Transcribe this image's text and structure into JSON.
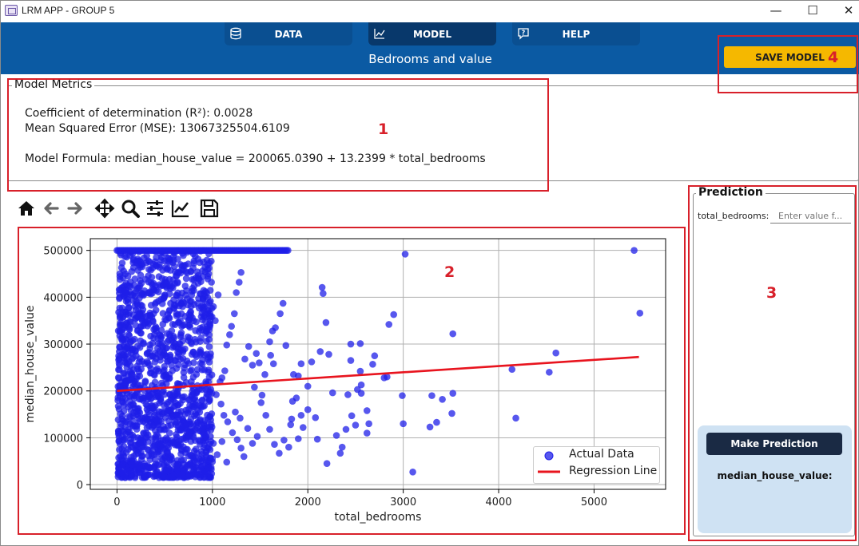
{
  "window": {
    "title": "LRM APP - GROUP 5",
    "minimize_glyph": "—",
    "maximize_glyph": "☐",
    "close_glyph": "✕"
  },
  "header": {
    "tabs": [
      {
        "label": "DATA",
        "icon": "database-icon",
        "active": false
      },
      {
        "label": "MODEL",
        "icon": "chart-icon",
        "active": true
      },
      {
        "label": "HELP",
        "icon": "help-bubble-icon",
        "active": false
      }
    ],
    "subtitle": "Bedrooms and value",
    "save_label": "SAVE MODEL"
  },
  "annotations": {
    "labels": [
      "1",
      "2",
      "3",
      "4"
    ],
    "color": "#d8202a"
  },
  "metrics": {
    "legend": "Model Metrics",
    "r2": "Coefficient of determination (R²): 0.0028",
    "mse": "Mean Squared Error (MSE): 13067325504.6109",
    "formula": "Model Formula: median_house_value = 200065.0390 + 13.2399 * total_bedrooms"
  },
  "toolbar": {
    "icons": [
      "home-icon",
      "back-arrow-icon",
      "forward-arrow-icon",
      "pan-icon",
      "zoom-icon",
      "configure-subplots-icon",
      "edit-axis-icon",
      "save-figure-icon"
    ]
  },
  "prediction": {
    "legend": "Prediction",
    "field_label": "total_bedrooms:",
    "field_placeholder": "Enter value f...",
    "button_label": "Make Prediction",
    "result_label": "median_house_value:"
  },
  "colors": {
    "header_blue": "#0b5aa3",
    "active_tab": "#08386b",
    "save_button": "#f5b800",
    "scatter": "#1f1fe8",
    "regression": "#e8141e",
    "card": "#cfe2f3"
  },
  "chart_data": {
    "type": "scatter",
    "xlabel": "total_bedrooms",
    "ylabel": "median_house_value",
    "xlim": [
      -280,
      5750
    ],
    "ylim": [
      -10000,
      525000
    ],
    "x_ticks": [
      0,
      1000,
      2000,
      3000,
      4000,
      5000
    ],
    "y_ticks": [
      0,
      100000,
      200000,
      300000,
      400000,
      500000
    ],
    "grid": true,
    "legend_position": "bottom-right",
    "series": [
      {
        "name": "Actual Data",
        "kind": "scatter",
        "points": [
          [
            5420,
            500001
          ],
          [
            3020,
            492000
          ],
          [
            5480,
            366000
          ],
          [
            4600,
            281000
          ],
          [
            4140,
            246000
          ],
          [
            4530,
            240000
          ],
          [
            4180,
            142000
          ],
          [
            3520,
            322000
          ],
          [
            3510,
            152000
          ],
          [
            3520,
            195000
          ],
          [
            3410,
            182000
          ],
          [
            3350,
            133000
          ],
          [
            3300,
            190000
          ],
          [
            3280,
            123000
          ],
          [
            3100,
            27000
          ],
          [
            2990,
            190000
          ],
          [
            3000,
            130000
          ],
          [
            2900,
            363000
          ],
          [
            2850,
            342000
          ],
          [
            2830,
            230000
          ],
          [
            2800,
            228000
          ],
          [
            2700,
            275000
          ],
          [
            2680,
            257000
          ],
          [
            2520,
            203000
          ],
          [
            2450,
            300000
          ],
          [
            2550,
            301000
          ],
          [
            2550,
            242000
          ],
          [
            2620,
            110000
          ],
          [
            2640,
            130000
          ],
          [
            2620,
            158000
          ],
          [
            2560,
            195000
          ],
          [
            2560,
            213000
          ],
          [
            2450,
            265000
          ],
          [
            2460,
            147000
          ],
          [
            2500,
            127000
          ],
          [
            2420,
            192000
          ],
          [
            2400,
            118000
          ],
          [
            2360,
            80000
          ],
          [
            2340,
            67000
          ],
          [
            2300,
            105000
          ],
          [
            2260,
            196000
          ],
          [
            2220,
            278000
          ],
          [
            2200,
            45000
          ],
          [
            2160,
            408000
          ],
          [
            2190,
            346000
          ],
          [
            2150,
            421000
          ],
          [
            2130,
            284000
          ],
          [
            2080,
            143000
          ],
          [
            2040,
            262000
          ],
          [
            2000,
            210000
          ],
          [
            1930,
            258000
          ],
          [
            1900,
            232000
          ],
          [
            1850,
            235000
          ],
          [
            1820,
            128000
          ],
          [
            1800,
            80000
          ],
          [
            1840,
            178000
          ],
          [
            1770,
            297000
          ],
          [
            1740,
            387000
          ],
          [
            1710,
            365000
          ],
          [
            1660,
            335000
          ],
          [
            1630,
            328000
          ],
          [
            1610,
            276000
          ],
          [
            1640,
            258000
          ],
          [
            1600,
            305000
          ],
          [
            1550,
            235000
          ],
          [
            1520,
            191000
          ],
          [
            1490,
            260000
          ],
          [
            1460,
            280000
          ],
          [
            1440,
            208000
          ],
          [
            1420,
            255000
          ],
          [
            1380,
            295000
          ],
          [
            1340,
            268000
          ],
          [
            1300,
            453000
          ],
          [
            1280,
            432000
          ],
          [
            1250,
            410000
          ],
          [
            1230,
            365000
          ],
          [
            1200,
            338000
          ],
          [
            1180,
            320000
          ],
          [
            1150,
            298000
          ],
          [
            1130,
            243000
          ],
          [
            1100,
            228000
          ],
          [
            1080,
            220000
          ],
          [
            1090,
            172000
          ],
          [
            1120,
            148000
          ],
          [
            1160,
            134000
          ],
          [
            1210,
            111000
          ],
          [
            1260,
            96000
          ],
          [
            1300,
            78000
          ],
          [
            1330,
            60000
          ],
          [
            1290,
            142000
          ],
          [
            1240,
            155000
          ],
          [
            1370,
            120000
          ],
          [
            1420,
            88000
          ],
          [
            1470,
            103000
          ],
          [
            1510,
            175000
          ],
          [
            1560,
            148000
          ],
          [
            1600,
            118000
          ],
          [
            1650,
            86000
          ],
          [
            1700,
            67000
          ],
          [
            1750,
            95000
          ],
          [
            1030,
            350000
          ],
          [
            1060,
            405000
          ],
          [
            1010,
            380000
          ],
          [
            990,
            432000
          ],
          [
            1040,
            192000
          ],
          [
            1010,
            88000
          ],
          [
            980,
            57000
          ],
          [
            1050,
            64000
          ],
          [
            1100,
            92000
          ],
          [
            1150,
            48000
          ],
          [
            2100,
            97000
          ],
          [
            2000,
            160000
          ],
          [
            1950,
            122000
          ],
          [
            1900,
            98000
          ],
          [
            1830,
            140000
          ],
          [
            1930,
            148000
          ],
          [
            1880,
            185000
          ]
        ]
      },
      {
        "name": "Regression Line",
        "kind": "line",
        "points": [
          [
            0,
            200065.039
          ],
          [
            5470,
            272488.0
          ]
        ]
      }
    ],
    "dense_cluster": {
      "x_range": [
        10,
        1000
      ],
      "y_range": [
        15000,
        500001
      ],
      "note": "saturated point cluster"
    },
    "cap_row": {
      "y": 500001,
      "x_range": [
        0,
        1800
      ]
    }
  }
}
